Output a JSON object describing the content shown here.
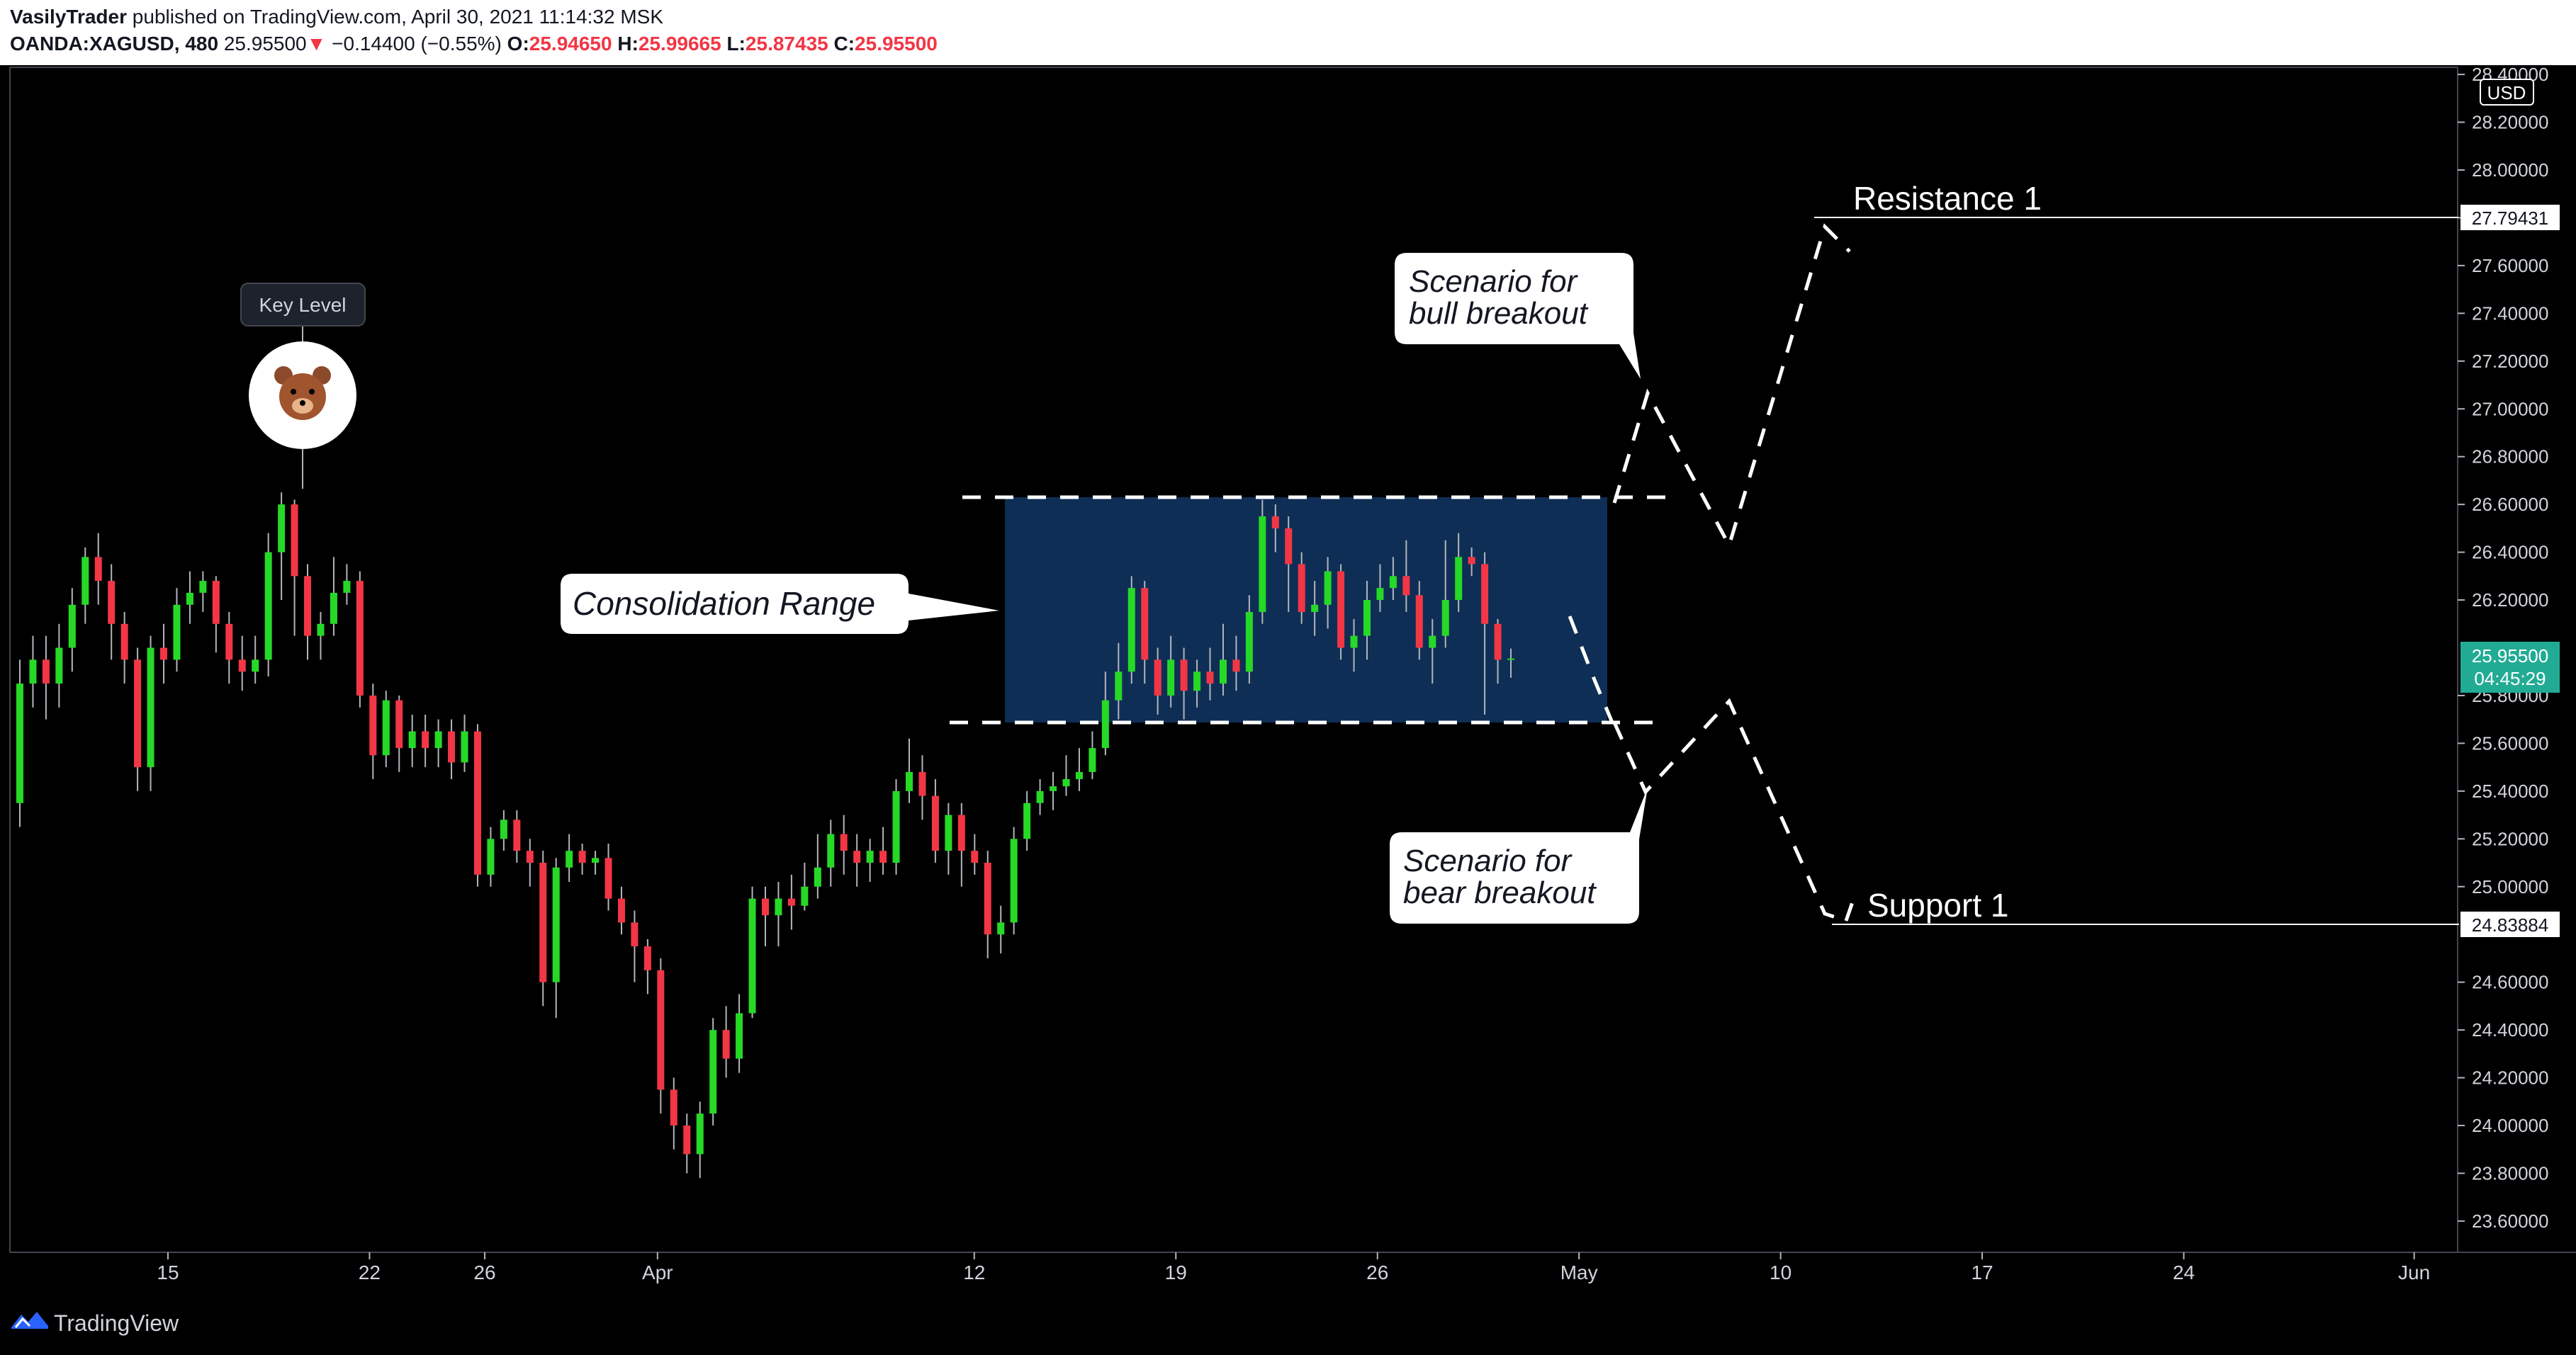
{
  "header": {
    "author": "VasilyTrader",
    "published_text": "published on TradingView.com, April 30, 2021 11:14:32 MSK",
    "symbol": "OANDA:XAGUSD, 480",
    "last": "25.95500",
    "change": "−0.14400 (−0.55%)",
    "o_label": "O:",
    "o": "25.94650",
    "h_label": "H:",
    "h": "25.99665",
    "l_label": "L:",
    "l": "25.87435",
    "c_label": "C:",
    "c": "25.95500"
  },
  "footer": {
    "brand": "TradingView"
  },
  "colors": {
    "up": "#26d926",
    "down": "#f23645",
    "range_box": "#0f2e55",
    "price_tag": "#22ab94"
  },
  "chart_data": {
    "type": "candlestick",
    "currency": "USD",
    "ylim": [
      23.45,
      28.42
    ],
    "y_ticks": [
      "28.40000",
      "28.20000",
      "28.00000",
      "27.80000",
      "27.60000",
      "27.40000",
      "27.20000",
      "27.00000",
      "26.80000",
      "26.60000",
      "26.40000",
      "26.20000",
      "25.80000",
      "25.60000",
      "25.40000",
      "25.20000",
      "25.00000",
      "24.60000",
      "24.40000",
      "24.20000",
      "24.00000",
      "23.80000",
      "23.60000"
    ],
    "x_ticks": [
      {
        "label": "15",
        "date": "2021-03-15"
      },
      {
        "label": "22",
        "date": "2021-03-22"
      },
      {
        "label": "26",
        "date": "2021-03-26"
      },
      {
        "label": "Apr",
        "date": "2021-04-01"
      },
      {
        "label": "12",
        "date": "2021-04-12"
      },
      {
        "label": "19",
        "date": "2021-04-19"
      },
      {
        "label": "26",
        "date": "2021-04-26"
      },
      {
        "label": "May",
        "date": "2021-05-03"
      },
      {
        "label": "10",
        "date": "2021-05-10"
      },
      {
        "label": "17",
        "date": "2021-05-17"
      },
      {
        "label": "24",
        "date": "2021-05-24"
      },
      {
        "label": "Jun",
        "date": "2021-06-01"
      }
    ],
    "candles": [
      [
        25.35,
        25.85,
        25.95,
        25.25
      ],
      [
        25.85,
        25.95,
        26.05,
        25.75
      ],
      [
        25.95,
        25.85,
        26.05,
        25.7
      ],
      [
        25.85,
        26.0,
        26.1,
        25.75
      ],
      [
        26.0,
        26.18,
        26.25,
        25.9
      ],
      [
        26.18,
        26.38,
        26.42,
        26.1
      ],
      [
        26.38,
        26.28,
        26.48,
        26.18
      ],
      [
        26.28,
        26.1,
        26.35,
        25.95
      ],
      [
        26.1,
        25.95,
        26.15,
        25.85
      ],
      [
        25.95,
        25.5,
        26.0,
        25.4
      ],
      [
        25.5,
        26.0,
        26.05,
        25.4
      ],
      [
        26.0,
        25.95,
        26.1,
        25.85
      ],
      [
        25.95,
        26.18,
        26.25,
        25.9
      ],
      [
        26.18,
        26.23,
        26.32,
        26.1
      ],
      [
        26.23,
        26.28,
        26.32,
        26.15
      ],
      [
        26.28,
        26.1,
        26.3,
        25.98
      ],
      [
        26.1,
        25.95,
        26.15,
        25.85
      ],
      [
        25.95,
        25.9,
        26.05,
        25.82
      ],
      [
        25.9,
        25.95,
        26.05,
        25.85
      ],
      [
        25.95,
        26.4,
        26.48,
        25.88
      ],
      [
        26.4,
        26.6,
        26.65,
        26.2
      ],
      [
        26.6,
        26.3,
        26.62,
        26.05
      ],
      [
        26.3,
        26.05,
        26.35,
        25.95
      ],
      [
        26.05,
        26.1,
        26.15,
        25.95
      ],
      [
        26.1,
        26.23,
        26.38,
        26.05
      ],
      [
        26.23,
        26.28,
        26.35,
        26.18
      ],
      [
        26.28,
        25.8,
        26.32,
        25.75
      ],
      [
        25.8,
        25.55,
        25.85,
        25.45
      ],
      [
        25.55,
        25.78,
        25.82,
        25.5
      ],
      [
        25.78,
        25.58,
        25.8,
        25.48
      ],
      [
        25.58,
        25.65,
        25.72,
        25.5
      ],
      [
        25.65,
        25.58,
        25.72,
        25.5
      ],
      [
        25.58,
        25.65,
        25.7,
        25.5
      ],
      [
        25.65,
        25.52,
        25.7,
        25.45
      ],
      [
        25.52,
        25.65,
        25.72,
        25.48
      ],
      [
        25.65,
        25.05,
        25.68,
        25.0
      ],
      [
        25.05,
        25.2,
        25.25,
        25.0
      ],
      [
        25.2,
        25.28,
        25.32,
        25.15
      ],
      [
        25.28,
        25.15,
        25.32,
        25.1
      ],
      [
        25.15,
        25.1,
        25.2,
        25.0
      ],
      [
        25.1,
        24.6,
        25.15,
        24.5
      ],
      [
        24.6,
        25.08,
        25.12,
        24.45
      ],
      [
        25.08,
        25.15,
        25.22,
        25.02
      ],
      [
        25.15,
        25.1,
        25.18,
        25.05
      ],
      [
        25.1,
        25.12,
        25.15,
        25.05
      ],
      [
        25.12,
        24.95,
        25.18,
        24.9
      ],
      [
        24.95,
        24.85,
        25.0,
        24.8
      ],
      [
        24.85,
        24.75,
        24.9,
        24.6
      ],
      [
        24.75,
        24.65,
        24.78,
        24.55
      ],
      [
        24.65,
        24.15,
        24.7,
        24.05
      ],
      [
        24.15,
        24.0,
        24.2,
        23.9
      ],
      [
        24.0,
        23.88,
        24.05,
        23.8
      ],
      [
        23.88,
        24.05,
        24.1,
        23.78
      ],
      [
        24.05,
        24.4,
        24.45,
        24.0
      ],
      [
        24.4,
        24.28,
        24.5,
        24.2
      ],
      [
        24.28,
        24.47,
        24.55,
        24.22
      ],
      [
        24.47,
        24.95,
        25.0,
        24.45
      ],
      [
        24.95,
        24.88,
        25.0,
        24.75
      ],
      [
        24.88,
        24.95,
        25.02,
        24.75
      ],
      [
        24.95,
        24.92,
        25.05,
        24.82
      ],
      [
        24.92,
        25.0,
        25.1,
        24.9
      ],
      [
        25.0,
        25.08,
        25.22,
        24.95
      ],
      [
        25.08,
        25.22,
        25.28,
        25.0
      ],
      [
        25.22,
        25.15,
        25.3,
        25.05
      ],
      [
        25.15,
        25.1,
        25.22,
        25.0
      ],
      [
        25.1,
        25.15,
        25.2,
        25.02
      ],
      [
        25.15,
        25.1,
        25.25,
        25.05
      ],
      [
        25.1,
        25.4,
        25.45,
        25.05
      ],
      [
        25.4,
        25.48,
        25.62,
        25.35
      ],
      [
        25.48,
        25.38,
        25.55,
        25.28
      ],
      [
        25.38,
        25.15,
        25.45,
        25.1
      ],
      [
        25.15,
        25.3,
        25.35,
        25.05
      ],
      [
        25.3,
        25.15,
        25.35,
        25.0
      ],
      [
        25.15,
        25.1,
        25.22,
        25.05
      ],
      [
        25.1,
        24.8,
        25.15,
        24.7
      ],
      [
        24.8,
        24.85,
        24.92,
        24.72
      ],
      [
        24.85,
        25.2,
        25.25,
        24.8
      ],
      [
        25.2,
        25.35,
        25.4,
        25.15
      ],
      [
        25.35,
        25.4,
        25.45,
        25.3
      ],
      [
        25.4,
        25.42,
        25.48,
        25.32
      ],
      [
        25.42,
        25.45,
        25.55,
        25.38
      ],
      [
        25.45,
        25.48,
        25.58,
        25.4
      ],
      [
        25.48,
        25.58,
        25.65,
        25.45
      ],
      [
        25.58,
        25.78,
        25.9,
        25.55
      ],
      [
        25.78,
        25.9,
        26.02,
        25.7
      ],
      [
        25.9,
        26.25,
        26.3,
        25.85
      ],
      [
        26.25,
        25.95,
        26.28,
        25.85
      ],
      [
        25.95,
        25.8,
        26.0,
        25.72
      ],
      [
        25.8,
        25.95,
        26.05,
        25.75
      ],
      [
        25.95,
        25.82,
        26.0,
        25.7
      ],
      [
        25.82,
        25.9,
        25.95,
        25.75
      ],
      [
        25.9,
        25.85,
        26.0,
        25.78
      ],
      [
        25.85,
        25.95,
        26.1,
        25.8
      ],
      [
        25.95,
        25.9,
        26.05,
        25.82
      ],
      [
        25.9,
        26.15,
        26.22,
        25.85
      ],
      [
        26.15,
        26.55,
        26.62,
        26.1
      ],
      [
        26.55,
        26.5,
        26.6,
        26.4
      ],
      [
        26.5,
        26.35,
        26.55,
        26.15
      ],
      [
        26.35,
        26.15,
        26.4,
        26.1
      ],
      [
        26.15,
        26.18,
        26.28,
        26.05
      ],
      [
        26.18,
        26.32,
        26.38,
        26.08
      ],
      [
        26.32,
        26.0,
        26.35,
        25.95
      ],
      [
        26.0,
        26.05,
        26.12,
        25.9
      ],
      [
        26.05,
        26.2,
        26.28,
        25.95
      ],
      [
        26.2,
        26.25,
        26.35,
        26.15
      ],
      [
        26.25,
        26.3,
        26.38,
        26.2
      ],
      [
        26.3,
        26.22,
        26.45,
        26.15
      ],
      [
        26.22,
        26.0,
        26.28,
        25.95
      ],
      [
        26.0,
        26.05,
        26.12,
        25.85
      ],
      [
        26.05,
        26.2,
        26.45,
        26.0
      ],
      [
        26.2,
        26.38,
        26.48,
        26.15
      ],
      [
        26.38,
        26.35,
        26.42,
        26.3
      ],
      [
        26.35,
        26.1,
        26.4,
        25.72
      ],
      [
        26.1,
        25.95,
        26.12,
        25.85
      ],
      [
        25.95,
        25.955,
        25.99665,
        25.87435
      ]
    ],
    "annotations": {
      "key_level": "Key Level",
      "consolidation": "Consolidation Range",
      "bull_line1": "Scenario for",
      "bull_line2": "bull breakout",
      "bear_line1": "Scenario for",
      "bear_line2": "bear breakout",
      "resistance": "Resistance 1",
      "resistance_price": "27.79431",
      "support": "Support 1",
      "support_price": "24.83884",
      "last_price": "25.95500",
      "countdown": "04:45:29",
      "range_top": 26.62,
      "range_bottom": 25.68
    }
  }
}
